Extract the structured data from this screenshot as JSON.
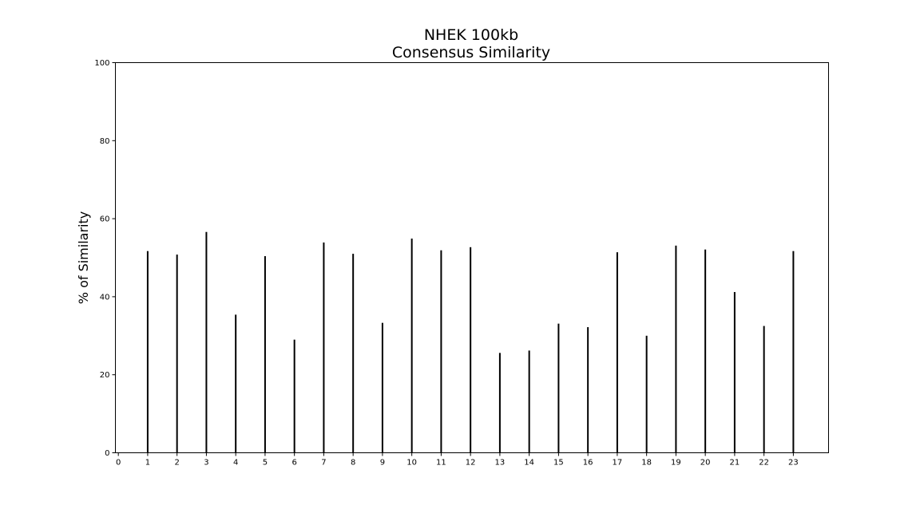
{
  "chart_data": {
    "type": "bar",
    "title": [
      "NHEK 100kb",
      "Consensus Similarity"
    ],
    "xlabel": "",
    "ylabel": "% of Similarity",
    "categories": [
      "1",
      "2",
      "3",
      "4",
      "5",
      "6",
      "7",
      "8",
      "9",
      "10",
      "11",
      "12",
      "13",
      "14",
      "15",
      "16",
      "17",
      "18",
      "19",
      "20",
      "21",
      "22",
      "23"
    ],
    "x_ticks": [
      "0",
      "1",
      "2",
      "3",
      "4",
      "5",
      "6",
      "7",
      "8",
      "9",
      "10",
      "11",
      "12",
      "13",
      "14",
      "15",
      "16",
      "17",
      "18",
      "19",
      "20",
      "21",
      "22",
      "23"
    ],
    "y_ticks": [
      "0",
      "20",
      "40",
      "60",
      "80",
      "100"
    ],
    "values": [
      51.7,
      50.8,
      56.6,
      35.4,
      50.4,
      29.0,
      53.9,
      51.0,
      33.3,
      54.9,
      51.9,
      52.7,
      25.6,
      26.2,
      33.1,
      32.2,
      51.4,
      30.0,
      53.1,
      52.1,
      41.2,
      32.5,
      51.7
    ],
    "xlim": [
      -0.1,
      24.2
    ],
    "ylim": [
      0,
      100
    ],
    "bar_color": "#000000",
    "grid": false,
    "legend": "none"
  }
}
